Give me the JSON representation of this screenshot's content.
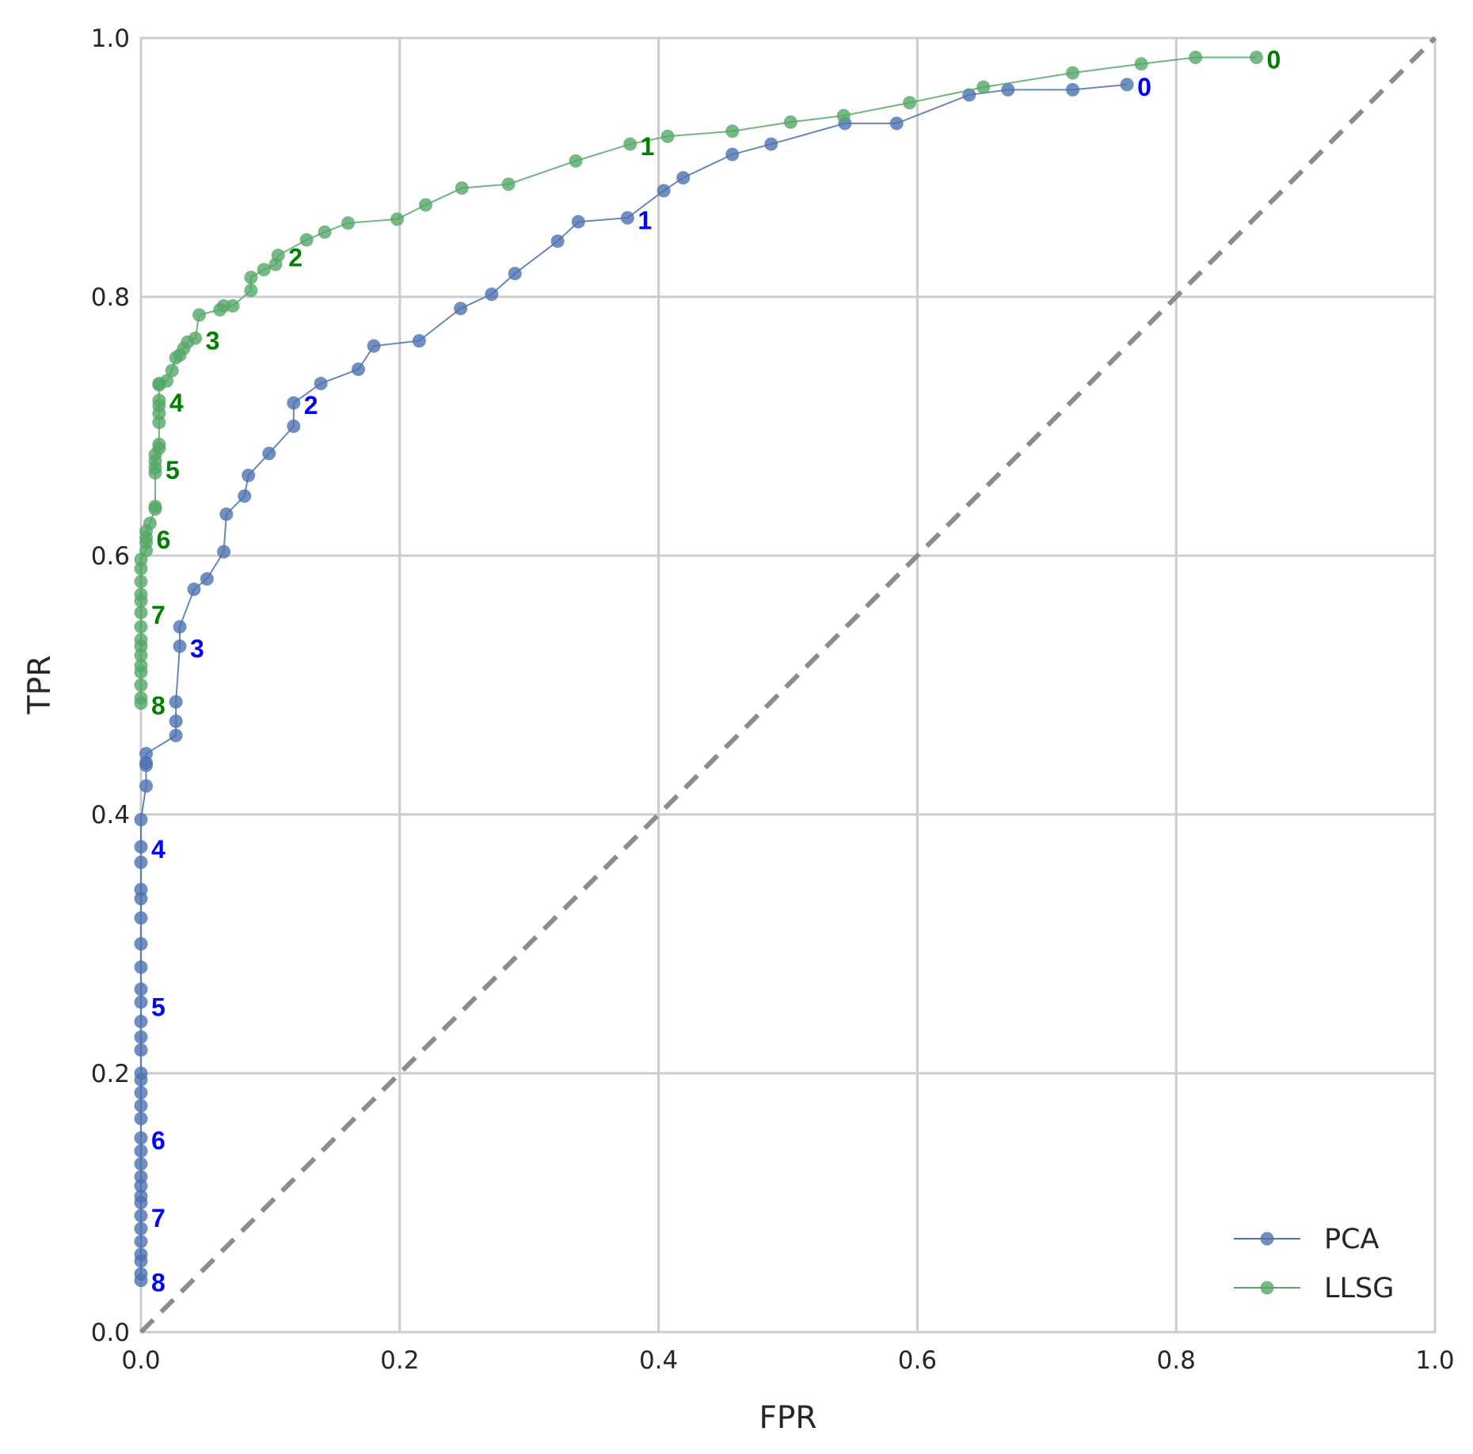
{
  "chart_data": {
    "type": "line",
    "xlabel": "FPR",
    "ylabel": "TPR",
    "xlim": [
      0,
      1
    ],
    "ylim": [
      0,
      1
    ],
    "xticks": [
      "0.0",
      "0.2",
      "0.4",
      "0.6",
      "0.8",
      "1.0"
    ],
    "yticks": [
      "0.0",
      "0.2",
      "0.4",
      "0.6",
      "0.8",
      "1.0"
    ],
    "grid": true,
    "diagonal_reference": true,
    "legend_position": "bottom-right",
    "series": [
      {
        "name": "PCA",
        "color": "#4C72B0",
        "points": [
          [
            0.0,
            0.04
          ],
          [
            0.0,
            0.045
          ],
          [
            0.0,
            0.055
          ],
          [
            0.0,
            0.06
          ],
          [
            0.0,
            0.07
          ],
          [
            0.0,
            0.08
          ],
          [
            0.0,
            0.09
          ],
          [
            0.0,
            0.1
          ],
          [
            0.0,
            0.105
          ],
          [
            0.0,
            0.113
          ],
          [
            0.0,
            0.12
          ],
          [
            0.0,
            0.13
          ],
          [
            0.0,
            0.14
          ],
          [
            0.0,
            0.15
          ],
          [
            0.0,
            0.165
          ],
          [
            0.0,
            0.175
          ],
          [
            0.0,
            0.185
          ],
          [
            0.0,
            0.195
          ],
          [
            0.0,
            0.2
          ],
          [
            0.0,
            0.218
          ],
          [
            0.0,
            0.228
          ],
          [
            0.0,
            0.24
          ],
          [
            0.0,
            0.255
          ],
          [
            0.0,
            0.265
          ],
          [
            0.0,
            0.282
          ],
          [
            0.0,
            0.3
          ],
          [
            0.0,
            0.32
          ],
          [
            0.0,
            0.335
          ],
          [
            0.0,
            0.342
          ],
          [
            0.0,
            0.363
          ],
          [
            0.0,
            0.375
          ],
          [
            0.0,
            0.396
          ],
          [
            0.004,
            0.422
          ],
          [
            0.004,
            0.438
          ],
          [
            0.004,
            0.44
          ],
          [
            0.004,
            0.447
          ],
          [
            0.027,
            0.461
          ],
          [
            0.027,
            0.472
          ],
          [
            0.027,
            0.487
          ],
          [
            0.03,
            0.53
          ],
          [
            0.03,
            0.545
          ],
          [
            0.041,
            0.574
          ],
          [
            0.051,
            0.582
          ],
          [
            0.064,
            0.603
          ],
          [
            0.066,
            0.632
          ],
          [
            0.08,
            0.646
          ],
          [
            0.083,
            0.662
          ],
          [
            0.099,
            0.679
          ],
          [
            0.118,
            0.7
          ],
          [
            0.118,
            0.718
          ],
          [
            0.139,
            0.733
          ],
          [
            0.168,
            0.744
          ],
          [
            0.18,
            0.762
          ],
          [
            0.215,
            0.766
          ],
          [
            0.247,
            0.791
          ],
          [
            0.271,
            0.802
          ],
          [
            0.289,
            0.818
          ],
          [
            0.322,
            0.843
          ],
          [
            0.338,
            0.858
          ],
          [
            0.376,
            0.861
          ],
          [
            0.404,
            0.882
          ],
          [
            0.419,
            0.892
          ],
          [
            0.457,
            0.91
          ],
          [
            0.487,
            0.918
          ],
          [
            0.544,
            0.934
          ],
          [
            0.584,
            0.934
          ],
          [
            0.64,
            0.956
          ],
          [
            0.67,
            0.96
          ],
          [
            0.72,
            0.96
          ],
          [
            0.762,
            0.964
          ]
        ],
        "thresholds": [
          {
            "label": "0",
            "x": 0.762,
            "y": 0.964
          },
          {
            "label": "1",
            "x": 0.376,
            "y": 0.861
          },
          {
            "label": "2",
            "x": 0.118,
            "y": 0.718
          },
          {
            "label": "3",
            "x": 0.03,
            "y": 0.53
          },
          {
            "label": "4",
            "x": 0.0,
            "y": 0.375
          },
          {
            "label": "5",
            "x": 0.0,
            "y": 0.253
          },
          {
            "label": "6",
            "x": 0.0,
            "y": 0.15
          },
          {
            "label": "7",
            "x": 0.0,
            "y": 0.09
          },
          {
            "label": "8",
            "x": 0.0,
            "y": 0.04
          }
        ]
      },
      {
        "name": "LLSG",
        "color": "#55A868",
        "points": [
          [
            0.0,
            0.486
          ],
          [
            0.0,
            0.49
          ],
          [
            0.0,
            0.5
          ],
          [
            0.0,
            0.51
          ],
          [
            0.0,
            0.515
          ],
          [
            0.0,
            0.523
          ],
          [
            0.0,
            0.53
          ],
          [
            0.0,
            0.535
          ],
          [
            0.0,
            0.545
          ],
          [
            0.0,
            0.556
          ],
          [
            0.0,
            0.565
          ],
          [
            0.0,
            0.57
          ],
          [
            0.0,
            0.58
          ],
          [
            0.0,
            0.59
          ],
          [
            0.0,
            0.597
          ],
          [
            0.004,
            0.604
          ],
          [
            0.004,
            0.61
          ],
          [
            0.004,
            0.614
          ],
          [
            0.004,
            0.619
          ],
          [
            0.007,
            0.625
          ],
          [
            0.011,
            0.636
          ],
          [
            0.011,
            0.638
          ],
          [
            0.011,
            0.664
          ],
          [
            0.011,
            0.668
          ],
          [
            0.011,
            0.673
          ],
          [
            0.011,
            0.678
          ],
          [
            0.014,
            0.683
          ],
          [
            0.014,
            0.686
          ],
          [
            0.014,
            0.703
          ],
          [
            0.014,
            0.71
          ],
          [
            0.014,
            0.716
          ],
          [
            0.014,
            0.72
          ],
          [
            0.014,
            0.732
          ],
          [
            0.014,
            0.733
          ],
          [
            0.02,
            0.735
          ],
          [
            0.024,
            0.743
          ],
          [
            0.027,
            0.753
          ],
          [
            0.03,
            0.755
          ],
          [
            0.033,
            0.76
          ],
          [
            0.036,
            0.765
          ],
          [
            0.042,
            0.768
          ],
          [
            0.045,
            0.786
          ],
          [
            0.061,
            0.79
          ],
          [
            0.064,
            0.793
          ],
          [
            0.071,
            0.793
          ],
          [
            0.085,
            0.805
          ],
          [
            0.085,
            0.815
          ],
          [
            0.095,
            0.821
          ],
          [
            0.104,
            0.825
          ],
          [
            0.106,
            0.832
          ],
          [
            0.128,
            0.844
          ],
          [
            0.142,
            0.85
          ],
          [
            0.16,
            0.857
          ],
          [
            0.198,
            0.86
          ],
          [
            0.22,
            0.871
          ],
          [
            0.248,
            0.884
          ],
          [
            0.284,
            0.887
          ],
          [
            0.336,
            0.905
          ],
          [
            0.378,
            0.918
          ],
          [
            0.407,
            0.924
          ],
          [
            0.457,
            0.928
          ],
          [
            0.502,
            0.935
          ],
          [
            0.543,
            0.94
          ],
          [
            0.594,
            0.95
          ],
          [
            0.651,
            0.962
          ],
          [
            0.72,
            0.973
          ],
          [
            0.773,
            0.98
          ],
          [
            0.815,
            0.985
          ],
          [
            0.862,
            0.985
          ]
        ],
        "thresholds": [
          {
            "label": "0",
            "x": 0.862,
            "y": 0.985
          },
          {
            "label": "1",
            "x": 0.378,
            "y": 0.918
          },
          {
            "label": "2",
            "x": 0.106,
            "y": 0.832
          },
          {
            "label": "3",
            "x": 0.042,
            "y": 0.768
          },
          {
            "label": "4",
            "x": 0.014,
            "y": 0.72
          },
          {
            "label": "5",
            "x": 0.011,
            "y": 0.668
          },
          {
            "label": "6",
            "x": 0.004,
            "y": 0.614
          },
          {
            "label": "7",
            "x": 0.0,
            "y": 0.556
          },
          {
            "label": "8",
            "x": 0.0,
            "y": 0.486
          }
        ]
      }
    ]
  },
  "threshold_label_colors": {
    "PCA": "#0000FF",
    "LLSG": "#008000"
  },
  "diagonal_color": "#8C8C8C",
  "grid_color": "#CCCCCC"
}
